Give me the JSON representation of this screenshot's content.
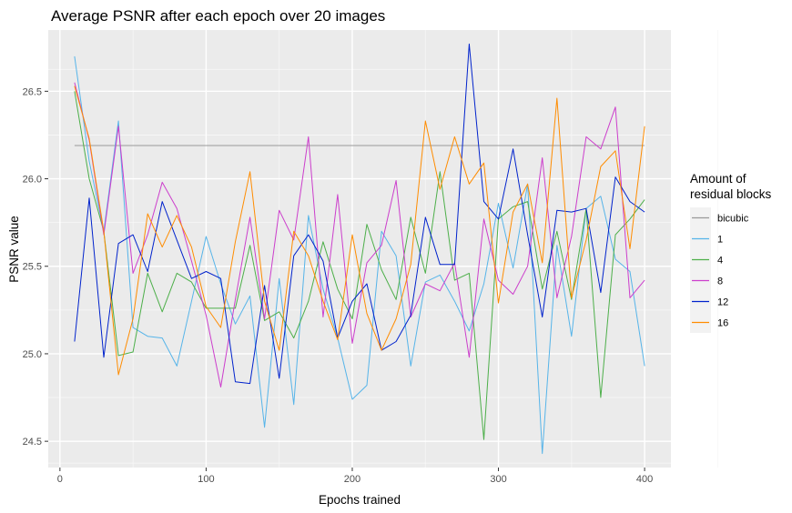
{
  "chart_data": {
    "type": "line",
    "title": "Average PSNR after each epoch over 20 images",
    "xlabel": "Epochs trained",
    "ylabel": "PSNR value",
    "xlim": [
      -8,
      418
    ],
    "ylim": [
      24.35,
      26.85
    ],
    "x_ticks": [
      0,
      100,
      200,
      300,
      400
    ],
    "y_ticks": [
      24.5,
      25.0,
      25.5,
      26.0,
      26.5
    ],
    "y_tick_labels": [
      "24.5",
      "25.0",
      "25.5",
      "26.0",
      "26.5"
    ],
    "grid": true,
    "legend_position": "right",
    "legend_title": [
      "Amount of",
      "residual blocks"
    ],
    "x": [
      10,
      20,
      30,
      40,
      50,
      60,
      70,
      80,
      90,
      100,
      110,
      120,
      130,
      140,
      150,
      160,
      170,
      180,
      190,
      200,
      210,
      220,
      230,
      240,
      250,
      260,
      270,
      280,
      290,
      300,
      310,
      320,
      330,
      340,
      350,
      360,
      370,
      380,
      390,
      400
    ],
    "series": [
      {
        "name": "bicubic",
        "color": "#999999",
        "values": [
          26.19,
          26.19,
          26.19,
          26.19,
          26.19,
          26.19,
          26.19,
          26.19,
          26.19,
          26.19,
          26.19,
          26.19,
          26.19,
          26.19,
          26.19,
          26.19,
          26.19,
          26.19,
          26.19,
          26.19,
          26.19,
          26.19,
          26.19,
          26.19,
          26.19,
          26.19,
          26.19,
          26.19,
          26.19,
          26.19,
          26.19,
          26.19,
          26.19,
          26.19,
          26.19,
          26.19,
          26.19,
          26.19,
          26.19,
          26.19
        ]
      },
      {
        "name": "1",
        "color": "#56B4E9",
        "values": [
          26.7,
          26.1,
          25.7,
          26.33,
          25.15,
          25.1,
          25.09,
          24.93,
          25.3,
          25.67,
          25.4,
          25.17,
          25.33,
          24.58,
          25.43,
          24.71,
          25.79,
          25.37,
          25.09,
          24.74,
          24.82,
          25.7,
          25.56,
          24.93,
          25.41,
          25.45,
          25.3,
          25.13,
          25.4,
          25.86,
          25.49,
          25.97,
          24.43,
          25.62,
          25.1,
          25.83,
          25.9,
          25.54,
          25.47,
          24.93
        ]
      },
      {
        "name": "4",
        "color": "#4DAF4A",
        "values": [
          26.5,
          26.0,
          25.7,
          24.99,
          25.01,
          25.46,
          25.24,
          25.46,
          25.41,
          25.26,
          25.26,
          25.26,
          25.62,
          25.19,
          25.24,
          25.09,
          25.3,
          25.64,
          25.37,
          25.2,
          25.74,
          25.48,
          25.31,
          25.78,
          25.46,
          26.04,
          25.42,
          25.46,
          24.51,
          25.77,
          25.84,
          25.87,
          25.37,
          25.7,
          25.31,
          25.83,
          24.75,
          25.68,
          25.77,
          25.88
        ]
      },
      {
        "name": "8",
        "color": "#CC3ECC",
        "values": [
          26.55,
          26.22,
          25.68,
          26.3,
          25.46,
          25.68,
          25.98,
          25.83,
          25.53,
          25.22,
          24.81,
          25.31,
          25.78,
          25.2,
          25.82,
          25.65,
          26.24,
          25.21,
          25.91,
          25.06,
          25.52,
          25.62,
          25.99,
          25.21,
          25.4,
          25.36,
          25.52,
          24.98,
          25.77,
          25.42,
          25.34,
          25.5,
          26.12,
          25.32,
          25.67,
          26.24,
          26.17,
          26.41,
          25.32,
          25.42
        ]
      },
      {
        "name": "12",
        "color": "#0022CC",
        "values": [
          25.07,
          25.89,
          24.98,
          25.63,
          25.68,
          25.47,
          25.87,
          25.65,
          25.43,
          25.47,
          25.43,
          24.84,
          24.83,
          25.39,
          24.86,
          25.56,
          25.68,
          25.53,
          25.09,
          25.3,
          25.4,
          25.02,
          25.07,
          25.22,
          25.78,
          25.51,
          25.51,
          26.77,
          25.87,
          25.77,
          26.17,
          25.68,
          25.21,
          25.82,
          25.81,
          25.83,
          25.35,
          26.01,
          25.87,
          25.81
        ]
      },
      {
        "name": "16",
        "color": "#FF8C00",
        "values": [
          26.53,
          26.23,
          25.7,
          24.88,
          25.2,
          25.8,
          25.61,
          25.79,
          25.61,
          25.27,
          25.15,
          25.64,
          26.04,
          25.3,
          25.02,
          25.7,
          25.56,
          25.3,
          25.08,
          25.68,
          25.23,
          25.02,
          25.2,
          25.51,
          26.33,
          25.94,
          26.24,
          25.97,
          26.09,
          25.29,
          25.81,
          25.97,
          25.52,
          26.46,
          25.32,
          25.65,
          26.07,
          26.16,
          25.6,
          26.3
        ]
      }
    ]
  }
}
